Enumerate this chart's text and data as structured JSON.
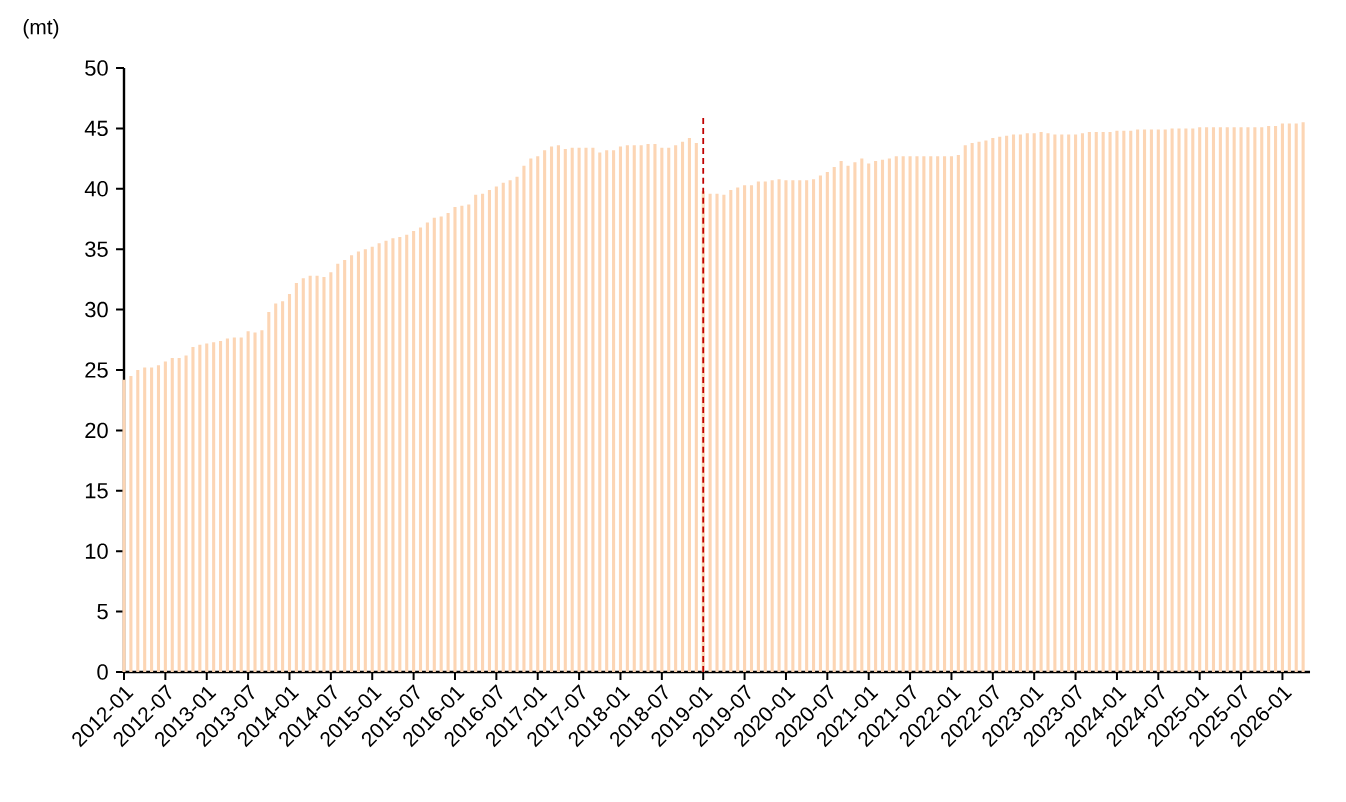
{
  "chart_data": {
    "type": "bar",
    "ylabel": "(mt)",
    "color": "#fcd5b4",
    "x": [
      "2012-01",
      "2012-02",
      "2012-03",
      "2012-04",
      "2012-05",
      "2012-06",
      "2012-07",
      "2012-08",
      "2012-09",
      "2012-10",
      "2012-11",
      "2012-12",
      "2013-01",
      "2013-02",
      "2013-03",
      "2013-04",
      "2013-05",
      "2013-06",
      "2013-07",
      "2013-08",
      "2013-09",
      "2013-10",
      "2013-11",
      "2013-12",
      "2014-01",
      "2014-02",
      "2014-03",
      "2014-04",
      "2014-05",
      "2014-06",
      "2014-07",
      "2014-08",
      "2014-09",
      "2014-10",
      "2014-11",
      "2014-12",
      "2015-01",
      "2015-02",
      "2015-03",
      "2015-04",
      "2015-05",
      "2015-06",
      "2015-07",
      "2015-08",
      "2015-09",
      "2015-10",
      "2015-11",
      "2015-12",
      "2016-01",
      "2016-02",
      "2016-03",
      "2016-04",
      "2016-05",
      "2016-06",
      "2016-07",
      "2016-08",
      "2016-09",
      "2016-10",
      "2016-11",
      "2016-12",
      "2017-01",
      "2017-02",
      "2017-03",
      "2017-04",
      "2017-05",
      "2017-06",
      "2017-07",
      "2017-08",
      "2017-09",
      "2017-10",
      "2017-11",
      "2017-12",
      "2018-01",
      "2018-02",
      "2018-03",
      "2018-04",
      "2018-05",
      "2018-06",
      "2018-07",
      "2018-08",
      "2018-09",
      "2018-10",
      "2018-11",
      "2018-12",
      "2019-01",
      "2019-02",
      "2019-03",
      "2019-04",
      "2019-05",
      "2019-06",
      "2019-07",
      "2019-08",
      "2019-09",
      "2019-10",
      "2019-11",
      "2019-12",
      "2020-01",
      "2020-02",
      "2020-03",
      "2020-04",
      "2020-05",
      "2020-06",
      "2020-07",
      "2020-08",
      "2020-09",
      "2020-10",
      "2020-11",
      "2020-12",
      "2021-01",
      "2021-02",
      "2021-03",
      "2021-04",
      "2021-05",
      "2021-06",
      "2021-07",
      "2021-08",
      "2021-09",
      "2021-10",
      "2021-11",
      "2021-12",
      "2022-01",
      "2022-02",
      "2022-03",
      "2022-04",
      "2022-05",
      "2022-06",
      "2022-07",
      "2022-08",
      "2022-09",
      "2022-10",
      "2022-11",
      "2022-12",
      "2023-01",
      "2023-02",
      "2023-03",
      "2023-04",
      "2023-05",
      "2023-06",
      "2023-07",
      "2023-08",
      "2023-09",
      "2023-10",
      "2023-11",
      "2023-12",
      "2024-01",
      "2024-02",
      "2024-03",
      "2024-04",
      "2024-05",
      "2024-06",
      "2024-07",
      "2024-08",
      "2024-09",
      "2024-10",
      "2024-11",
      "2024-12",
      "2025-01",
      "2025-02",
      "2025-03",
      "2025-04",
      "2025-05",
      "2025-06",
      "2025-07",
      "2025-08",
      "2025-09",
      "2025-10",
      "2025-11",
      "2025-12",
      "2026-01",
      "2026-02",
      "2026-03",
      "2026-04"
    ],
    "values": [
      24.2,
      24.5,
      25.0,
      25.2,
      25.2,
      25.4,
      25.7,
      26.0,
      26.0,
      26.2,
      26.9,
      27.1,
      27.2,
      27.3,
      27.4,
      27.6,
      27.7,
      27.7,
      28.2,
      28.1,
      28.3,
      29.8,
      30.5,
      30.7,
      31.3,
      32.2,
      32.6,
      32.8,
      32.8,
      32.7,
      33.1,
      33.8,
      34.1,
      34.5,
      34.8,
      35.0,
      35.2,
      35.5,
      35.7,
      35.9,
      36.0,
      36.2,
      36.5,
      36.8,
      37.2,
      37.6,
      37.7,
      38.0,
      38.5,
      38.6,
      38.7,
      39.5,
      39.6,
      39.9,
      40.2,
      40.5,
      40.7,
      41.0,
      41.9,
      42.5,
      42.7,
      43.2,
      43.5,
      43.6,
      43.3,
      43.4,
      43.4,
      43.4,
      43.4,
      43.0,
      43.2,
      43.2,
      43.5,
      43.6,
      43.6,
      43.6,
      43.7,
      43.7,
      43.4,
      43.4,
      43.6,
      43.9,
      44.2,
      43.8,
      39.8,
      39.6,
      39.6,
      39.5,
      39.9,
      40.1,
      40.3,
      40.3,
      40.6,
      40.6,
      40.7,
      40.8,
      40.7,
      40.7,
      40.7,
      40.7,
      40.8,
      41.1,
      41.4,
      41.8,
      42.3,
      41.9,
      42.2,
      42.5,
      42.1,
      42.3,
      42.4,
      42.5,
      42.7,
      42.7,
      42.7,
      42.7,
      42.7,
      42.7,
      42.7,
      42.7,
      42.7,
      42.8,
      43.6,
      43.8,
      43.9,
      44.0,
      44.2,
      44.3,
      44.4,
      44.5,
      44.5,
      44.6,
      44.6,
      44.7,
      44.6,
      44.5,
      44.5,
      44.5,
      44.5,
      44.6,
      44.7,
      44.7,
      44.7,
      44.7,
      44.8,
      44.8,
      44.8,
      44.9,
      44.9,
      44.9,
      44.9,
      44.9,
      45.0,
      45.0,
      45.0,
      45.0,
      45.1,
      45.1,
      45.1,
      45.1,
      45.1,
      45.1,
      45.1,
      45.1,
      45.1,
      45.1,
      45.2,
      45.2,
      45.4,
      45.4,
      45.4,
      45.5
    ],
    "xlim": [
      "2012-01",
      "2026-05"
    ],
    "xticks": [
      "2012-01",
      "2012-07",
      "2013-01",
      "2013-07",
      "2014-01",
      "2014-07",
      "2015-01",
      "2015-07",
      "2016-01",
      "2016-07",
      "2017-01",
      "2017-07",
      "2018-01",
      "2018-07",
      "2019-01",
      "2019-07",
      "2020-01",
      "2020-07",
      "2021-01",
      "2021-07",
      "2022-01",
      "2022-07",
      "2023-01",
      "2023-07",
      "2024-01",
      "2024-07",
      "2025-01",
      "2025-07",
      "2026-01"
    ],
    "ylim": [
      0,
      50
    ],
    "yticks": [
      0,
      5,
      10,
      15,
      20,
      25,
      30,
      35,
      40,
      45,
      50
    ],
    "ref_lines": [
      {
        "axis": "x",
        "value": "2019-01",
        "color": "#c00000",
        "line_style": "dashed"
      }
    ],
    "grid": false
  }
}
